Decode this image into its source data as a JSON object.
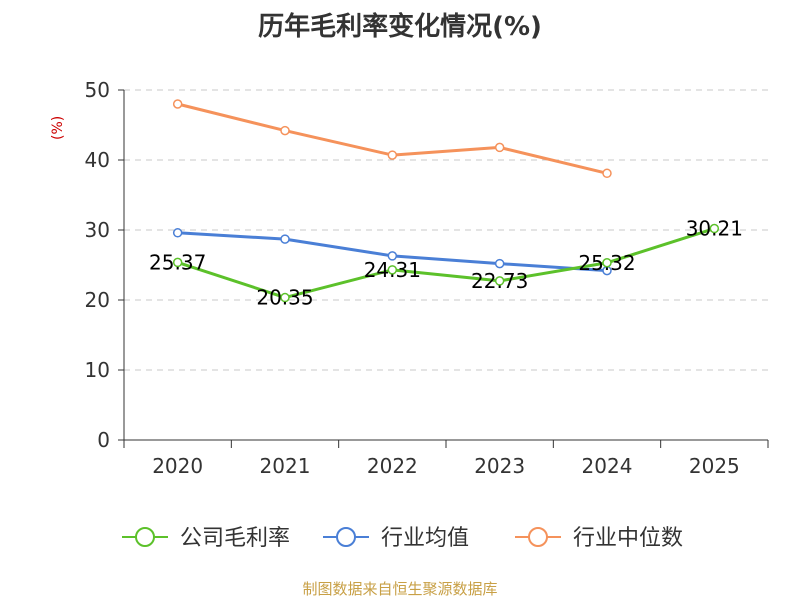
{
  "chart_data": {
    "type": "line",
    "title": "历年毛利率变化情况(%)",
    "unit": "(%)",
    "source": "制图数据来自恒生聚源数据库",
    "categories": [
      "2020",
      "2021",
      "2022",
      "2023",
      "2024",
      "2025"
    ],
    "ylim": [
      0,
      50
    ],
    "yticks": [
      0,
      10,
      20,
      30,
      40,
      50
    ],
    "grid": true,
    "legend_position": "bottom",
    "series": [
      {
        "name": "公司毛利率",
        "color": "#5cc12a",
        "values": [
          25.37,
          20.35,
          24.31,
          22.73,
          25.32,
          30.21
        ],
        "labels": [
          "25.37",
          "20.35",
          "24.31",
          "22.73",
          "25.32",
          "30.21"
        ]
      },
      {
        "name": "行业均值",
        "color": "#4a7fd6",
        "values": [
          29.6,
          28.7,
          26.3,
          25.2,
          24.2,
          null
        ]
      },
      {
        "name": "行业中位数",
        "color": "#f5925b",
        "values": [
          48.0,
          44.2,
          40.7,
          41.8,
          38.1,
          null
        ]
      }
    ]
  }
}
